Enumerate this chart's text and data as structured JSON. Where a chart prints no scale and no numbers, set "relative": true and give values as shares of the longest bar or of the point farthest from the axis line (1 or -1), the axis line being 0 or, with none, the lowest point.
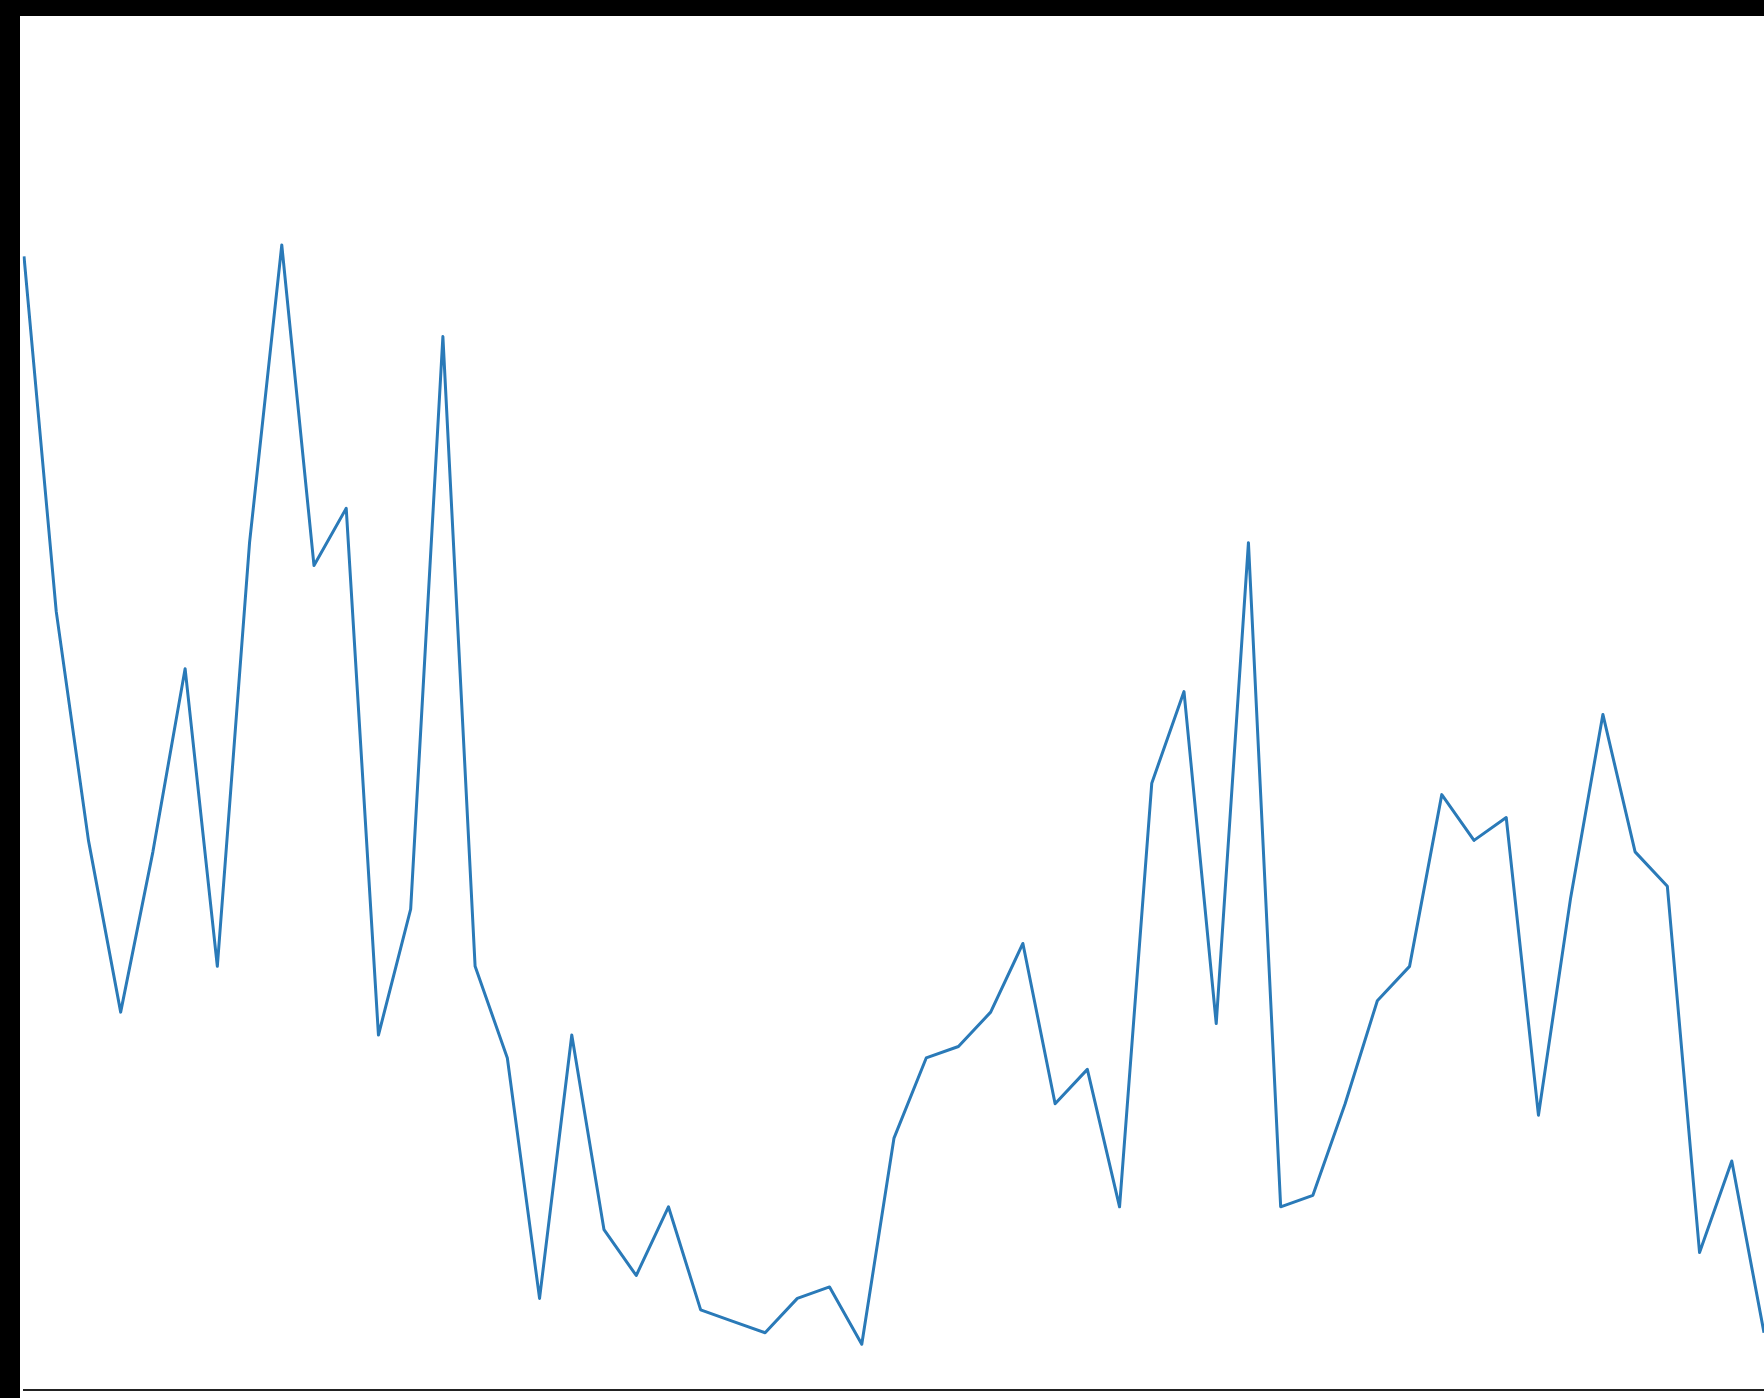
{
  "chart_data": {
    "type": "line",
    "relative": true,
    "tick_labels": false,
    "color": "#2a7ab8",
    "marker": "none",
    "line_style": "solid",
    "legend": false,
    "grid": false,
    "categories": [
      null,
      null,
      null,
      null,
      null,
      null,
      null,
      null,
      null,
      null,
      null,
      null,
      null,
      null,
      null,
      null,
      null,
      null,
      null,
      null,
      null,
      null,
      null,
      null,
      null,
      null,
      null,
      null,
      null,
      null,
      null,
      null,
      null,
      null,
      null,
      null,
      null,
      null,
      null,
      null,
      null,
      null,
      null,
      null,
      null,
      null,
      null,
      null,
      null,
      null,
      null,
      null,
      null,
      null,
      null
    ],
    "values": [
      0.99,
      0.68,
      0.48,
      0.33,
      0.47,
      0.63,
      0.37,
      0.74,
      1,
      0.72,
      0.77,
      0.31,
      0.42,
      0.92,
      0.37,
      0.29,
      0.08,
      0.31,
      0.14,
      0.1,
      0.16,
      0.07,
      0.06,
      0.05,
      0.08,
      0.09,
      0.04,
      0.22,
      0.29,
      0.3,
      0.33,
      0.39,
      0.25,
      0.28,
      0.16,
      0.53,
      0.61,
      0.32,
      0.74,
      0.16,
      0.17,
      0.25,
      0.34,
      0.37,
      0.52,
      0.48,
      0.5,
      0.24,
      0.43,
      0.59,
      0.47,
      0.44,
      0.12,
      0.2,
      0.05
    ]
  }
}
